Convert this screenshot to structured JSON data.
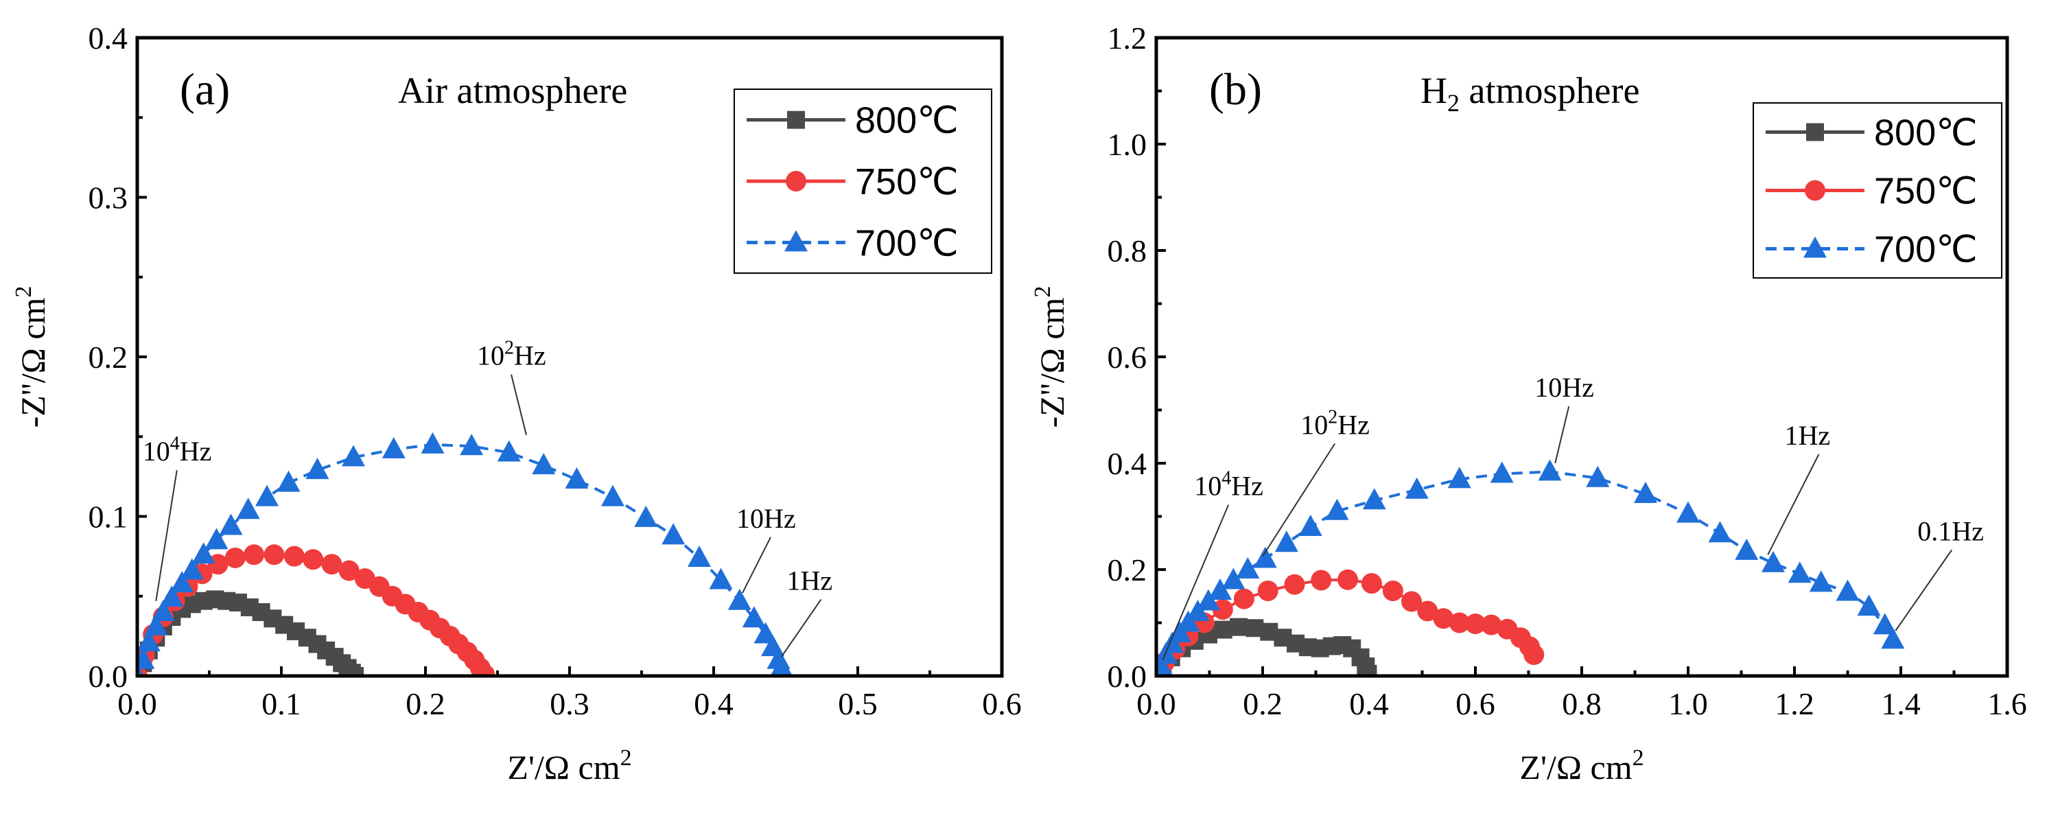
{
  "chart_data": [
    {
      "type": "scatter",
      "panel_label": "(a)",
      "title": "Air atmosphere",
      "title_main": "Air atmosphere",
      "title_sub": "",
      "title_rest": "",
      "xlabel": "Z'/Ω cm",
      "ylabel": "-Z''/Ω cm",
      "unit_sup": "2",
      "xlim": [
        0,
        0.6
      ],
      "ylim": [
        0,
        0.4
      ],
      "xticks": [
        "0.0",
        "0.1",
        "0.2",
        "0.3",
        "0.4",
        "0.5",
        "0.6"
      ],
      "yticks": [
        "0.0",
        "0.1",
        "0.2",
        "0.3",
        "0.4"
      ],
      "legend_position": "top-right",
      "series": [
        {
          "name": "800℃",
          "color": "#4a4a4a",
          "marker": "square",
          "line_style": "solid",
          "points": [
            [
              0.0,
              0.0
            ],
            [
              0.004,
              0.008
            ],
            [
              0.008,
              0.016
            ],
            [
              0.013,
              0.024
            ],
            [
              0.018,
              0.031
            ],
            [
              0.024,
              0.037
            ],
            [
              0.031,
              0.042
            ],
            [
              0.038,
              0.045
            ],
            [
              0.046,
              0.047
            ],
            [
              0.054,
              0.048
            ],
            [
              0.062,
              0.047
            ],
            [
              0.07,
              0.046
            ],
            [
              0.078,
              0.043
            ],
            [
              0.086,
              0.04
            ],
            [
              0.094,
              0.036
            ],
            [
              0.102,
              0.032
            ],
            [
              0.11,
              0.028
            ],
            [
              0.118,
              0.024
            ],
            [
              0.125,
              0.02
            ],
            [
              0.131,
              0.016
            ],
            [
              0.137,
              0.012
            ],
            [
              0.142,
              0.008
            ],
            [
              0.146,
              0.005
            ],
            [
              0.149,
              0.002
            ],
            [
              0.151,
              0.0
            ]
          ]
        },
        {
          "name": "750℃",
          "color": "#f03c3c",
          "marker": "circle",
          "line_style": "solid",
          "points": [
            [
              0.0,
              0.0
            ],
            [
              0.005,
              0.013
            ],
            [
              0.011,
              0.026
            ],
            [
              0.018,
              0.037
            ],
            [
              0.026,
              0.047
            ],
            [
              0.035,
              0.056
            ],
            [
              0.045,
              0.064
            ],
            [
              0.056,
              0.07
            ],
            [
              0.068,
              0.074
            ],
            [
              0.081,
              0.076
            ],
            [
              0.095,
              0.076
            ],
            [
              0.109,
              0.075
            ],
            [
              0.122,
              0.073
            ],
            [
              0.135,
              0.07
            ],
            [
              0.147,
              0.066
            ],
            [
              0.158,
              0.061
            ],
            [
              0.168,
              0.056
            ],
            [
              0.177,
              0.05
            ],
            [
              0.186,
              0.045
            ],
            [
              0.195,
              0.04
            ],
            [
              0.203,
              0.035
            ],
            [
              0.21,
              0.03
            ],
            [
              0.217,
              0.025
            ],
            [
              0.223,
              0.02
            ],
            [
              0.229,
              0.015
            ],
            [
              0.234,
              0.01
            ],
            [
              0.238,
              0.005
            ],
            [
              0.241,
              0.001
            ]
          ]
        },
        {
          "name": "700℃",
          "color": "#1f6fd9",
          "marker": "triangle",
          "line_style": "dash",
          "points": [
            [
              0.0,
              0.0
            ],
            [
              0.004,
              0.01
            ],
            [
              0.008,
              0.021
            ],
            [
              0.013,
              0.031
            ],
            [
              0.018,
              0.04
            ],
            [
              0.024,
              0.049
            ],
            [
              0.031,
              0.058
            ],
            [
              0.038,
              0.066
            ],
            [
              0.046,
              0.076
            ],
            [
              0.055,
              0.085
            ],
            [
              0.065,
              0.094
            ],
            [
              0.077,
              0.104
            ],
            [
              0.09,
              0.112
            ],
            [
              0.105,
              0.121
            ],
            [
              0.125,
              0.129
            ],
            [
              0.15,
              0.137
            ],
            [
              0.178,
              0.142
            ],
            [
              0.205,
              0.145
            ],
            [
              0.232,
              0.144
            ],
            [
              0.258,
              0.14
            ],
            [
              0.282,
              0.132
            ],
            [
              0.305,
              0.123
            ],
            [
              0.33,
              0.112
            ],
            [
              0.353,
              0.099
            ],
            [
              0.372,
              0.088
            ],
            [
              0.39,
              0.074
            ],
            [
              0.405,
              0.06
            ],
            [
              0.418,
              0.047
            ],
            [
              0.428,
              0.036
            ],
            [
              0.436,
              0.026
            ],
            [
              0.441,
              0.018
            ],
            [
              0.445,
              0.01
            ],
            [
              0.447,
              0.005
            ],
            [
              0.448,
              0.002
            ]
          ]
        }
      ],
      "annotations": [
        {
          "base": "10",
          "sup": "4",
          "rest": "Hz",
          "x": 0.018,
          "y": 0.135,
          "tx": 0.013,
          "ty": 0.047
        },
        {
          "base": "10",
          "sup": "2",
          "rest": "Hz",
          "x": 0.25,
          "y": 0.195,
          "tx": 0.27,
          "ty": 0.151
        },
        {
          "base": "10Hz",
          "sup": "",
          "rest": "",
          "x": 0.43,
          "y": 0.093,
          "tx": 0.42,
          "ty": 0.052
        },
        {
          "base": "1Hz",
          "sup": "",
          "rest": "",
          "x": 0.465,
          "y": 0.054,
          "tx": 0.447,
          "ty": 0.012
        }
      ]
    },
    {
      "type": "scatter",
      "panel_label": "(b)",
      "title": "H2 atmosphere",
      "title_main": "H",
      "title_sub": "2",
      "title_rest": " atmosphere",
      "xlabel": "Z'/Ω cm",
      "ylabel": "-Z''/Ω cm",
      "unit_sup": "2",
      "xlim": [
        0,
        1.6
      ],
      "ylim": [
        0,
        1.2
      ],
      "xticks": [
        "0.0",
        "0.2",
        "0.4",
        "0.6",
        "0.8",
        "1.0",
        "1.2",
        "1.4",
        "1.6"
      ],
      "yticks": [
        "0.0",
        "0.2",
        "0.4",
        "0.6",
        "0.8",
        "1.0",
        "1.2"
      ],
      "legend_position": "top-right",
      "series": [
        {
          "name": "800℃",
          "color": "#4a4a4a",
          "marker": "square",
          "line_style": "solid",
          "points": [
            [
              0.0,
              0.0
            ],
            [
              0.012,
              0.018
            ],
            [
              0.028,
              0.035
            ],
            [
              0.048,
              0.052
            ],
            [
              0.072,
              0.066
            ],
            [
              0.098,
              0.078
            ],
            [
              0.126,
              0.087
            ],
            [
              0.155,
              0.092
            ],
            [
              0.185,
              0.09
            ],
            [
              0.212,
              0.083
            ],
            [
              0.238,
              0.072
            ],
            [
              0.262,
              0.061
            ],
            [
              0.285,
              0.054
            ],
            [
              0.308,
              0.052
            ],
            [
              0.33,
              0.056
            ],
            [
              0.35,
              0.058
            ],
            [
              0.368,
              0.052
            ],
            [
              0.384,
              0.035
            ],
            [
              0.394,
              0.018
            ],
            [
              0.398,
              0.004
            ]
          ]
        },
        {
          "name": "750℃",
          "color": "#f03c3c",
          "marker": "circle",
          "line_style": "solid",
          "points": [
            [
              0.0,
              0.0
            ],
            [
              0.015,
              0.025
            ],
            [
              0.035,
              0.05
            ],
            [
              0.06,
              0.075
            ],
            [
              0.09,
              0.1
            ],
            [
              0.125,
              0.125
            ],
            [
              0.165,
              0.145
            ],
            [
              0.21,
              0.16
            ],
            [
              0.26,
              0.172
            ],
            [
              0.31,
              0.18
            ],
            [
              0.36,
              0.181
            ],
            [
              0.405,
              0.174
            ],
            [
              0.445,
              0.16
            ],
            [
              0.48,
              0.14
            ],
            [
              0.51,
              0.122
            ],
            [
              0.54,
              0.108
            ],
            [
              0.57,
              0.1
            ],
            [
              0.6,
              0.098
            ],
            [
              0.63,
              0.096
            ],
            [
              0.66,
              0.088
            ],
            [
              0.685,
              0.072
            ],
            [
              0.702,
              0.055
            ],
            [
              0.71,
              0.04
            ]
          ]
        },
        {
          "name": "700℃",
          "color": "#1f6fd9",
          "marker": "triangle",
          "line_style": "dash",
          "points": [
            [
              0.0,
              0.0
            ],
            [
              0.008,
              0.02
            ],
            [
              0.018,
              0.04
            ],
            [
              0.03,
              0.06
            ],
            [
              0.044,
              0.08
            ],
            [
              0.06,
              0.1
            ],
            [
              0.078,
              0.12
            ],
            [
              0.098,
              0.14
            ],
            [
              0.12,
              0.16
            ],
            [
              0.145,
              0.18
            ],
            [
              0.172,
              0.2
            ],
            [
              0.205,
              0.22
            ],
            [
              0.245,
              0.25
            ],
            [
              0.29,
              0.28
            ],
            [
              0.34,
              0.31
            ],
            [
              0.41,
              0.33
            ],
            [
              0.49,
              0.35
            ],
            [
              0.57,
              0.37
            ],
            [
              0.65,
              0.38
            ],
            [
              0.74,
              0.384
            ],
            [
              0.83,
              0.372
            ],
            [
              0.92,
              0.342
            ],
            [
              1.0,
              0.305
            ],
            [
              1.06,
              0.268
            ],
            [
              1.11,
              0.235
            ],
            [
              1.16,
              0.212
            ],
            [
              1.21,
              0.192
            ],
            [
              1.25,
              0.175
            ],
            [
              1.3,
              0.158
            ],
            [
              1.34,
              0.13
            ],
            [
              1.37,
              0.095
            ],
            [
              1.385,
              0.068
            ]
          ]
        }
      ],
      "annotations": [
        {
          "base": "10",
          "sup": "4",
          "rest": "Hz",
          "x": 0.11,
          "y": 0.34,
          "tx": 0.012,
          "ty": 0.03
        },
        {
          "base": "10",
          "sup": "2",
          "rest": "Hz",
          "x": 0.31,
          "y": 0.455,
          "tx": 0.2,
          "ty": 0.225
        },
        {
          "base": "10Hz",
          "sup": "",
          "rest": "",
          "x": 0.75,
          "y": 0.525,
          "tx": 0.75,
          "ty": 0.4
        },
        {
          "base": "1Hz",
          "sup": "",
          "rest": "",
          "x": 1.22,
          "y": 0.435,
          "tx": 1.15,
          "ty": 0.228
        },
        {
          "base": "0.1Hz",
          "sup": "",
          "rest": "",
          "x": 1.47,
          "y": 0.255,
          "tx": 1.39,
          "ty": 0.085
        }
      ]
    }
  ]
}
